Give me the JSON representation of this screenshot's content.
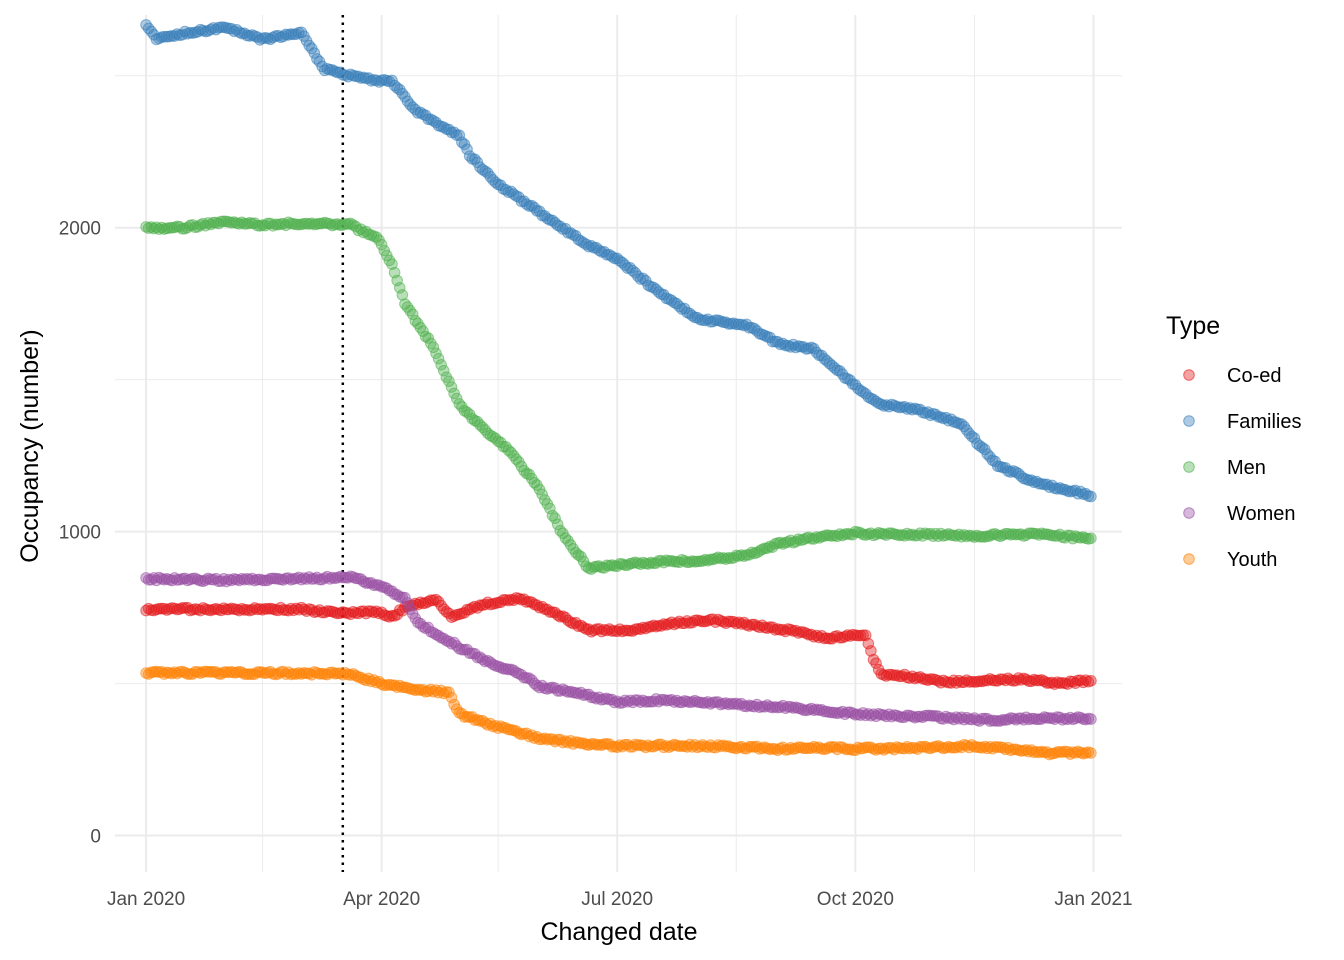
{
  "chart_data": {
    "type": "scatter",
    "title": "",
    "xlabel": "Changed date",
    "ylabel": "Occupancy (number)",
    "x_ticks": [
      "Jan 2020",
      "Apr 2020",
      "Jul 2020",
      "Oct 2020",
      "Jan 2021"
    ],
    "y_ticks": [
      "0",
      "1000",
      "2000"
    ],
    "xlim": [
      "2019-12-20",
      "2021-01-12"
    ],
    "ylim": [
      -120,
      2700
    ],
    "grid": true,
    "reference_line": {
      "x": "2020-03-17",
      "style": "dotted"
    },
    "legend": {
      "title": "Type",
      "position": "right"
    },
    "series": [
      {
        "name": "Co-ed",
        "color": "#e41a1c",
        "points": [
          [
            "2020-01-01",
            745
          ],
          [
            "2020-02-01",
            745
          ],
          [
            "2020-03-01",
            745
          ],
          [
            "2020-03-15",
            730
          ],
          [
            "2020-03-31",
            735
          ],
          [
            "2020-04-04",
            715
          ],
          [
            "2020-04-12",
            760
          ],
          [
            "2020-04-22",
            775
          ],
          [
            "2020-04-28",
            720
          ],
          [
            "2020-05-10",
            760
          ],
          [
            "2020-05-25",
            780
          ],
          [
            "2020-06-10",
            720
          ],
          [
            "2020-06-20",
            675
          ],
          [
            "2020-07-05",
            675
          ],
          [
            "2020-07-20",
            695
          ],
          [
            "2020-08-05",
            710
          ],
          [
            "2020-08-20",
            695
          ],
          [
            "2020-09-05",
            675
          ],
          [
            "2020-09-20",
            650
          ],
          [
            "2020-10-05",
            660
          ],
          [
            "2020-10-08",
            580
          ],
          [
            "2020-10-11",
            530
          ],
          [
            "2020-10-20",
            525
          ],
          [
            "2020-11-05",
            505
          ],
          [
            "2020-11-20",
            510
          ],
          [
            "2020-12-05",
            515
          ],
          [
            "2020-12-20",
            500
          ],
          [
            "2020-12-31",
            510
          ]
        ]
      },
      {
        "name": "Families",
        "color": "#377eb8",
        "points": [
          [
            "2020-01-01",
            2670
          ],
          [
            "2020-01-05",
            2620
          ],
          [
            "2020-01-15",
            2640
          ],
          [
            "2020-02-01",
            2660
          ],
          [
            "2020-02-15",
            2620
          ],
          [
            "2020-03-01",
            2640
          ],
          [
            "2020-03-10",
            2520
          ],
          [
            "2020-03-25",
            2490
          ],
          [
            "2020-04-05",
            2480
          ],
          [
            "2020-04-15",
            2380
          ],
          [
            "2020-05-01",
            2300
          ],
          [
            "2020-05-05",
            2240
          ],
          [
            "2020-05-15",
            2150
          ],
          [
            "2020-06-01",
            2050
          ],
          [
            "2020-06-20",
            1940
          ],
          [
            "2020-07-01",
            1900
          ],
          [
            "2020-07-15",
            1800
          ],
          [
            "2020-08-01",
            1700
          ],
          [
            "2020-08-20",
            1680
          ],
          [
            "2020-09-01",
            1620
          ],
          [
            "2020-09-15",
            1600
          ],
          [
            "2020-10-01",
            1480
          ],
          [
            "2020-10-10",
            1420
          ],
          [
            "2020-10-25",
            1400
          ],
          [
            "2020-11-10",
            1360
          ],
          [
            "2020-11-25",
            1220
          ],
          [
            "2020-12-10",
            1160
          ],
          [
            "2020-12-31",
            1120
          ]
        ]
      },
      {
        "name": "Men",
        "color": "#4daf4a",
        "points": [
          [
            "2020-01-01",
            2000
          ],
          [
            "2020-01-15",
            2000
          ],
          [
            "2020-02-01",
            2020
          ],
          [
            "2020-02-15",
            2010
          ],
          [
            "2020-03-01",
            2015
          ],
          [
            "2020-03-20",
            2010
          ],
          [
            "2020-03-31",
            1960
          ],
          [
            "2020-04-05",
            1880
          ],
          [
            "2020-04-10",
            1750
          ],
          [
            "2020-04-20",
            1620
          ],
          [
            "2020-05-01",
            1420
          ],
          [
            "2020-05-10",
            1340
          ],
          [
            "2020-05-20",
            1270
          ],
          [
            "2020-06-01",
            1140
          ],
          [
            "2020-06-10",
            990
          ],
          [
            "2020-06-20",
            880
          ],
          [
            "2020-07-01",
            890
          ],
          [
            "2020-07-15",
            900
          ],
          [
            "2020-08-01",
            905
          ],
          [
            "2020-08-20",
            920
          ],
          [
            "2020-09-01",
            960
          ],
          [
            "2020-09-15",
            980
          ],
          [
            "2020-10-01",
            995
          ],
          [
            "2020-10-15",
            990
          ],
          [
            "2020-11-01",
            990
          ],
          [
            "2020-11-15",
            985
          ],
          [
            "2020-12-01",
            990
          ],
          [
            "2020-12-15",
            990
          ],
          [
            "2020-12-31",
            975
          ]
        ]
      },
      {
        "name": "Women",
        "color": "#984ea3",
        "points": [
          [
            "2020-01-01",
            845
          ],
          [
            "2020-02-01",
            840
          ],
          [
            "2020-03-01",
            845
          ],
          [
            "2020-03-20",
            850
          ],
          [
            "2020-04-01",
            820
          ],
          [
            "2020-04-10",
            780
          ],
          [
            "2020-04-15",
            700
          ],
          [
            "2020-05-01",
            620
          ],
          [
            "2020-05-15",
            560
          ],
          [
            "2020-05-25",
            530
          ],
          [
            "2020-06-01",
            490
          ],
          [
            "2020-06-15",
            470
          ],
          [
            "2020-07-01",
            440
          ],
          [
            "2020-07-15",
            445
          ],
          [
            "2020-08-01",
            440
          ],
          [
            "2020-08-15",
            430
          ],
          [
            "2020-09-01",
            425
          ],
          [
            "2020-09-20",
            410
          ],
          [
            "2020-10-01",
            400
          ],
          [
            "2020-10-15",
            395
          ],
          [
            "2020-11-01",
            390
          ],
          [
            "2020-11-20",
            380
          ],
          [
            "2020-12-10",
            385
          ],
          [
            "2020-12-31",
            385
          ]
        ]
      },
      {
        "name": "Youth",
        "color": "#ff7f00",
        "points": [
          [
            "2020-01-01",
            535
          ],
          [
            "2020-02-01",
            535
          ],
          [
            "2020-03-01",
            535
          ],
          [
            "2020-03-20",
            530
          ],
          [
            "2020-04-01",
            500
          ],
          [
            "2020-04-15",
            480
          ],
          [
            "2020-04-27",
            470
          ],
          [
            "2020-05-01",
            400
          ],
          [
            "2020-05-15",
            360
          ],
          [
            "2020-06-01",
            320
          ],
          [
            "2020-06-15",
            305
          ],
          [
            "2020-07-01",
            295
          ],
          [
            "2020-08-01",
            295
          ],
          [
            "2020-08-20",
            290
          ],
          [
            "2020-09-01",
            285
          ],
          [
            "2020-09-15",
            290
          ],
          [
            "2020-10-01",
            285
          ],
          [
            "2020-11-01",
            290
          ],
          [
            "2020-11-15",
            295
          ],
          [
            "2020-12-01",
            285
          ],
          [
            "2020-12-15",
            270
          ],
          [
            "2020-12-31",
            275
          ]
        ]
      }
    ]
  }
}
